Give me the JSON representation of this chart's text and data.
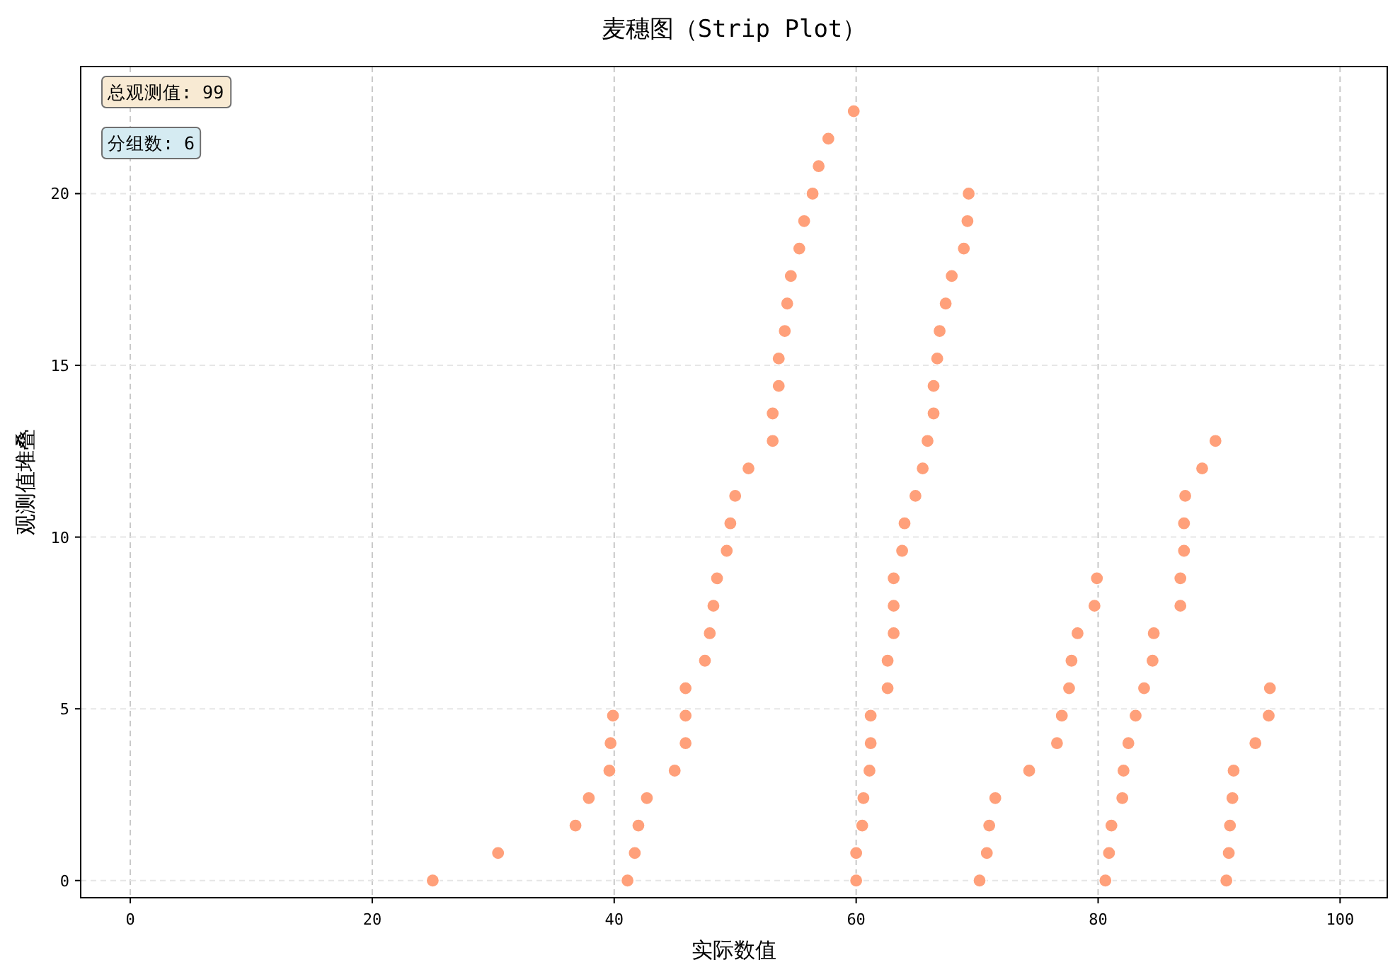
{
  "chart_data": {
    "type": "scatter",
    "title": "麦穗图（Strip Plot）",
    "xlabel": "实际数值",
    "ylabel": "观测值堆叠",
    "annotations": [
      "总观测值: 99",
      "分组数: 6"
    ],
    "series": [
      {
        "color": "#ffa07a",
        "x": [
          25.0,
          30.4,
          36.8,
          37.9,
          39.6,
          39.7,
          39.9,
          41.1,
          41.7,
          42.0,
          42.7,
          45.0,
          45.9,
          45.9,
          45.9,
          47.5,
          47.9,
          48.2,
          48.5,
          49.3,
          49.6,
          50.0,
          51.1,
          53.1,
          53.1,
          53.6,
          53.6,
          54.1,
          54.3,
          54.6,
          55.3,
          55.7,
          56.4,
          56.9,
          57.7,
          59.8,
          60.0,
          60.0,
          60.5,
          60.6,
          61.1,
          61.2,
          61.2,
          62.6,
          62.6,
          63.1,
          63.1,
          63.1,
          63.8,
          64.0,
          64.9,
          65.5,
          65.9,
          66.4,
          66.4,
          66.7,
          66.9,
          67.4,
          67.9,
          68.9,
          69.2,
          69.3,
          70.2,
          70.8,
          71.0,
          71.5,
          74.3,
          76.6,
          77.0,
          77.6,
          77.8,
          78.3,
          79.7,
          79.9,
          80.6,
          80.9,
          81.1,
          82.0,
          82.1,
          82.5,
          83.1,
          83.8,
          84.5,
          84.6,
          86.8,
          86.8,
          87.1,
          87.1,
          87.2,
          88.6,
          89.7,
          90.6,
          90.8,
          90.9,
          91.1,
          91.2,
          93.0,
          94.1,
          94.2
        ],
        "values": [
          0,
          0.8,
          1.6,
          2.4,
          3.2,
          4,
          4.8,
          0,
          0.8,
          1.6,
          2.4,
          3.2,
          4,
          4.8,
          5.6,
          6.4,
          7.2,
          8,
          8.8,
          9.6,
          10.4,
          11.2,
          12,
          12.8,
          13.6,
          14.4,
          15.2,
          16,
          16.8,
          17.6,
          18.4,
          19.2,
          20,
          20.8,
          21.6,
          22.4,
          0,
          0.8,
          1.6,
          2.4,
          3.2,
          4,
          4.8,
          5.6,
          6.4,
          7.2,
          8,
          8.8,
          9.6,
          10.4,
          11.2,
          12,
          12.8,
          13.6,
          14.4,
          15.2,
          16,
          16.8,
          17.6,
          18.4,
          19.2,
          20,
          0,
          0.8,
          1.6,
          2.4,
          3.2,
          4,
          4.8,
          5.6,
          6.4,
          7.2,
          8,
          8.8,
          0,
          0.8,
          1.6,
          2.4,
          3.2,
          4,
          4.8,
          5.6,
          6.4,
          7.2,
          8,
          8.8,
          9.6,
          10.4,
          11.2,
          12,
          12.8,
          0,
          0.8,
          1.6,
          2.4,
          3.2,
          4,
          4.8,
          5.6
        ]
      }
    ],
    "xlim": [
      -4.1,
      103.9
    ],
    "ylim": [
      -0.5,
      23.7
    ],
    "xticks": [
      0,
      20,
      40,
      60,
      80,
      100
    ],
    "yticks": [
      0,
      5,
      10,
      15,
      20
    ],
    "grid": true,
    "marker": "circle"
  }
}
